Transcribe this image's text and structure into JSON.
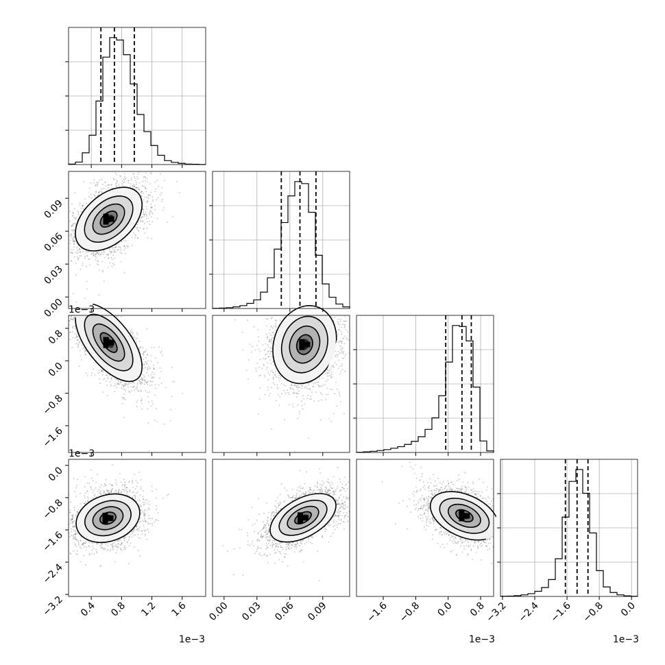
{
  "chart_data": {
    "type": "corner",
    "grid": true,
    "parameters": [
      {
        "range": [
          0.0,
          0.0012
        ],
        "display_range": [
          0.0001,
          0.00191
        ],
        "ticks": [
          "0.4",
          "0.8",
          "1.2",
          "1.6"
        ],
        "tick_values": [
          0.0004,
          0.0008,
          0.0012,
          0.0016
        ],
        "offset": "1e−3",
        "quantiles": [
          0.000527,
          0.000705,
          0.000968
        ],
        "hist_counts": [
          2,
          10,
          48,
          120,
          260,
          440,
          520,
          510,
          450,
          330,
          205,
          135,
          78,
          38,
          16,
          9,
          5,
          2,
          1,
          0
        ]
      },
      {
        "display_range": [
          -0.0105,
          0.1145
        ],
        "ticks": [
          "0.00",
          "0.03",
          "0.06",
          "0.09"
        ],
        "tick_values": [
          0.0,
          0.03,
          0.06,
          0.09
        ],
        "quantiles": [
          0.0522,
          0.0692,
          0.0838
        ],
        "hist_counts": [
          1,
          2,
          4,
          8,
          14,
          25,
          42,
          80,
          150,
          290,
          420,
          550,
          620,
          610,
          470,
          260,
          120,
          55,
          22,
          8
        ]
      },
      {
        "display_range": [
          -0.00226,
          0.00112
        ],
        "ticks": [
          "−1.6",
          "−0.8",
          "0.0",
          "0.8"
        ],
        "tick_values": [
          -0.0016,
          -0.0008,
          0.0,
          0.0008
        ],
        "offset": "1e−3",
        "quantiles": [
          -6e-05,
          0.00034,
          0.00057
        ],
        "hist_counts": [
          1,
          3,
          6,
          10,
          15,
          22,
          30,
          42,
          58,
          82,
          120,
          180,
          295,
          470,
          660,
          655,
          580,
          340,
          60,
          8
        ]
      },
      {
        "display_range": [
          -0.00325,
          0.00015
        ],
        "ticks": [
          "−3.2",
          "−2.4",
          "−1.6",
          "−0.8",
          "0.0"
        ],
        "tick_values": [
          -0.0032,
          -0.0024,
          -0.0016,
          -0.0008,
          0.0
        ],
        "offset": "1e−3",
        "quantiles": [
          -0.00164,
          -0.00135,
          -0.00108
        ],
        "hist_counts": [
          1,
          2,
          4,
          8,
          14,
          26,
          45,
          85,
          190,
          400,
          580,
          640,
          520,
          320,
          130,
          48,
          20,
          8,
          3,
          1
        ]
      }
    ],
    "correlations": [
      {
        "i": 1,
        "j": 0,
        "mean_x": 0.00063,
        "mean_y": 0.071,
        "sx": 0.00022,
        "sy": 0.0145,
        "rho": 0.45
      },
      {
        "i": 2,
        "j": 0,
        "mean_x": 0.00063,
        "mean_y": 0.00045,
        "sx": 0.00022,
        "sy": 0.00048,
        "rho": -0.62
      },
      {
        "i": 2,
        "j": 1,
        "mean_x": 0.0735,
        "mean_y": 0.0004,
        "sx": 0.0145,
        "sy": 0.00048,
        "rho": 0.15
      },
      {
        "i": 3,
        "j": 0,
        "mean_x": 0.00062,
        "mean_y": -0.00131,
        "sx": 0.00021,
        "sy": 0.0003,
        "rho": 0.22
      },
      {
        "i": 3,
        "j": 1,
        "mean_x": 0.072,
        "mean_y": -0.0013,
        "sx": 0.015,
        "sy": 0.0003,
        "rho": 0.5
      },
      {
        "i": 3,
        "j": 2,
        "mean_x": 0.0004,
        "mean_y": -0.00125,
        "sx": 0.00042,
        "sy": 0.0003,
        "rho": -0.4
      }
    ],
    "colors": {
      "axes": "#000000",
      "grid": "#b0b0b0",
      "contour": "#000000",
      "density_dark": "#000000",
      "points": "#555555"
    }
  }
}
